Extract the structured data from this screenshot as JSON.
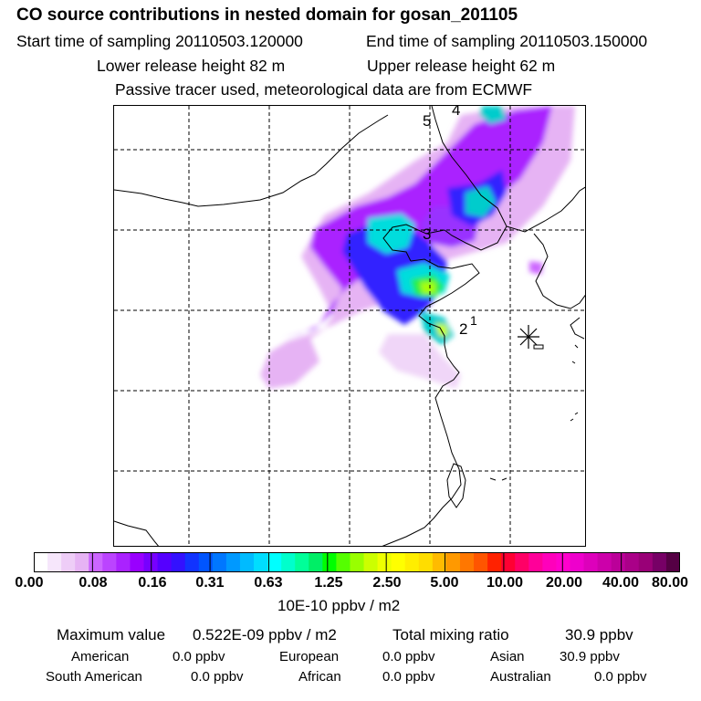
{
  "header": {
    "title": "CO  source contributions in nested domain for gosan_201105",
    "start_label": "Start time of sampling 20110503.120000",
    "end_label": "End time of sampling 20110503.150000",
    "lower_label": "Lower release height   82 m",
    "upper_label": "Upper release height   62 m",
    "tracer_label": "Passive tracer used, meteorological data are from ECMWF"
  },
  "chart_data": {
    "type": "heatmap",
    "title": "CO  source contributions in nested domain for gosan_201105",
    "map_labels": [
      "5",
      "4",
      "3",
      "2",
      "1"
    ],
    "receptor": "Gosan (star marker)",
    "colorbar": {
      "ticks": [
        "0.00",
        "0.08",
        "0.16",
        "0.31",
        "0.63",
        "1.25",
        "2.50",
        "5.00",
        "10.00",
        "20.00",
        "40.00",
        "80.00"
      ],
      "unit": "10E-10 ppbv / m2",
      "colors": [
        "#ffffff",
        "#f6e6fb",
        "#eecdf7",
        "#e6b3f4",
        "#cc66ff",
        "#bb44ff",
        "#aa22ff",
        "#9900ff",
        "#7700ff",
        "#5500ff",
        "#3311ff",
        "#1133ff",
        "#0055ff",
        "#0077ff",
        "#0099ff",
        "#00bbff",
        "#00ddff",
        "#00ffff",
        "#00ffcc",
        "#00ff99",
        "#00ee66",
        "#00ff00",
        "#55ff00",
        "#99ff00",
        "#ccff00",
        "#eeff00",
        "#ffff00",
        "#ffee00",
        "#ffdd00",
        "#ffbb00",
        "#ff9900",
        "#ff7700",
        "#ff5500",
        "#ff2200",
        "#ff0033",
        "#ff0066",
        "#ff0099",
        "#ff00bb",
        "#ff00cc",
        "#ee00cc",
        "#dd00bb",
        "#cc00aa",
        "#bb0099",
        "#aa0088",
        "#990077",
        "#770066",
        "#550044"
      ]
    },
    "maximum_value": "0.522E-09 ppbv / m2",
    "total_mixing_ratio": "30.9 ppbv",
    "contributions": [
      {
        "region": "American",
        "value": "0.0 ppbv"
      },
      {
        "region": "European",
        "value": "0.0 ppbv"
      },
      {
        "region": "Asian",
        "value": "30.9 ppbv"
      },
      {
        "region": "South American",
        "value": "0.0 ppbv"
      },
      {
        "region": "African",
        "value": "0.0 ppbv"
      },
      {
        "region": "Australian",
        "value": "0.0 ppbv"
      }
    ]
  },
  "stats": {
    "max_label": "Maximum value",
    "max_value": "0.522E-09 ppbv / m2",
    "total_label": "Total mixing ratio",
    "total_value": "30.9 ppbv",
    "regions": [
      {
        "name": "American",
        "value": "0.0 ppbv"
      },
      {
        "name": "European",
        "value": "0.0 ppbv"
      },
      {
        "name": "Asian",
        "value": "30.9 ppbv"
      },
      {
        "name": "South American",
        "value": "0.0 ppbv"
      },
      {
        "name": "African",
        "value": "0.0 ppbv"
      },
      {
        "name": "Australian",
        "value": "0.0 ppbv"
      }
    ]
  }
}
